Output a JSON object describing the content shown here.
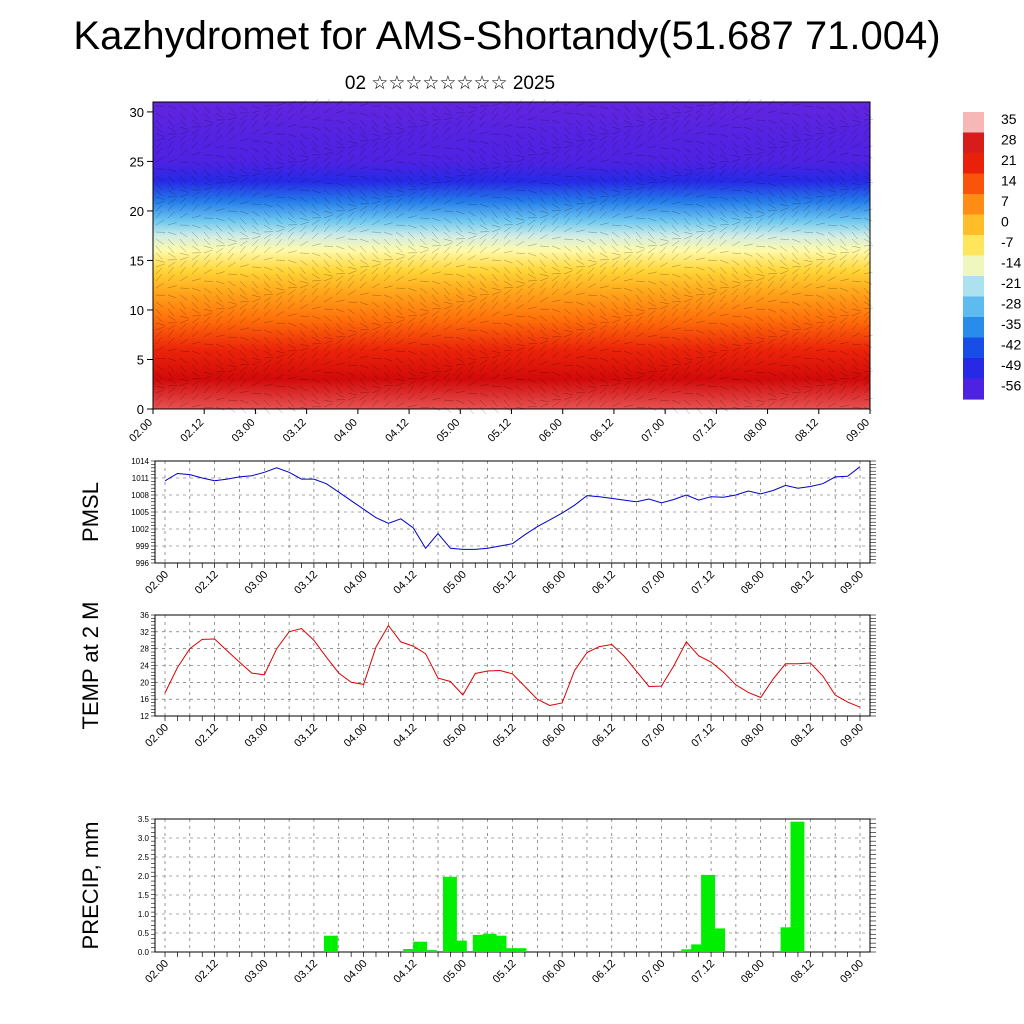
{
  "title": "Kazhydromet for AMS-Shortandy(51.687 71.004)",
  "subtitle": "02 ☆☆☆☆☆☆☆☆ 2025",
  "chart_data": [
    {
      "type": "heatmap",
      "name": "vertical-temperature-cross-section",
      "x_ticks": [
        "02.00",
        "02.12",
        "03.00",
        "03.12",
        "04.00",
        "04.12",
        "05.00",
        "05.12",
        "06.00",
        "06.12",
        "07.00",
        "07.12",
        "08.00",
        "08.12",
        "09.00"
      ],
      "y_ticks": [
        0,
        5,
        10,
        15,
        20,
        25,
        30
      ],
      "ylim": [
        0,
        31
      ],
      "colorbar_labels": [
        "35",
        "28",
        "21",
        "14",
        "7",
        "0",
        "-7",
        "-14",
        "-21",
        "-28",
        "-35",
        "-42",
        "-49",
        "-56"
      ],
      "colorbar_range": [
        -60,
        38
      ],
      "level_temperatures": [
        {
          "level": 0,
          "t": 33
        },
        {
          "level": 3,
          "t": 29
        },
        {
          "level": 6,
          "t": 22
        },
        {
          "level": 9,
          "t": 13
        },
        {
          "level": 12,
          "t": 5
        },
        {
          "level": 14,
          "t": -2
        },
        {
          "level": 16,
          "t": -10
        },
        {
          "level": 17.5,
          "t": -16
        },
        {
          "level": 19,
          "t": -24
        },
        {
          "level": 21,
          "t": -35
        },
        {
          "level": 23,
          "t": -47
        },
        {
          "level": 25,
          "t": -54
        },
        {
          "level": 28,
          "t": -55
        },
        {
          "level": 31,
          "t": -57
        }
      ]
    },
    {
      "type": "line",
      "ylabel": "PMSL",
      "ylim": [
        996,
        1014
      ],
      "y_ticks": [
        996,
        999,
        1002,
        1005,
        1008,
        1011,
        1014
      ],
      "x_ticks": [
        "02.00",
        "02.12",
        "03.00",
        "03.12",
        "04.00",
        "04.12",
        "05.00",
        "05.12",
        "06.00",
        "06.12",
        "07.00",
        "07.12",
        "08.00",
        "08.12",
        "09.00"
      ],
      "color": "#0000cc",
      "series": [
        {
          "x": [
            0,
            3,
            6,
            9,
            12,
            15,
            18,
            21,
            24,
            27,
            30,
            33,
            36,
            39,
            42,
            45,
            48,
            51,
            54,
            57,
            60,
            63,
            66,
            69,
            72,
            75,
            78,
            81,
            84,
            87,
            90,
            93,
            96,
            99,
            102,
            105,
            108,
            111,
            114,
            117,
            120,
            123,
            126,
            129,
            132,
            135,
            138,
            141,
            144,
            147,
            150,
            153,
            156,
            159,
            162,
            165,
            168
          ],
          "values": [
            1010.5,
            1011.8,
            1011.6,
            1011.0,
            1010.5,
            1010.8,
            1011.2,
            1011.4,
            1012.0,
            1012.8,
            1012.0,
            1010.8,
            1010.8,
            1010.0,
            1008.5,
            1007.0,
            1005.5,
            1004.0,
            1003.0,
            1003.8,
            1002.2,
            998.6,
            1001.2,
            998.6,
            998.4,
            998.4,
            998.6,
            999.0,
            999.4,
            1001.0,
            1002.4,
            1003.6,
            1004.8,
            1006.2,
            1007.9,
            1007.7,
            1007.4,
            1007.1,
            1006.8,
            1007.3,
            1006.6,
            1007.2,
            1008.0,
            1007.1,
            1007.7,
            1007.6,
            1008.0,
            1008.7,
            1008.2,
            1008.8,
            1009.7,
            1009.2,
            1009.5,
            1010.0,
            1011.2,
            1011.3,
            1013.0
          ]
        }
      ]
    },
    {
      "type": "line",
      "ylabel": "TEMP at 2 M",
      "ylim": [
        12,
        36
      ],
      "y_ticks": [
        12,
        16,
        20,
        24,
        28,
        32,
        36
      ],
      "x_ticks": [
        "02.00",
        "02.12",
        "03.00",
        "03.12",
        "04.00",
        "04.12",
        "05.00",
        "05.12",
        "06.00",
        "06.12",
        "07.00",
        "07.12",
        "08.00",
        "08.12",
        "09.00"
      ],
      "color": "#dd0000",
      "series": [
        {
          "x": [
            0,
            3,
            6,
            9,
            12,
            15,
            18,
            21,
            24,
            27,
            30,
            33,
            36,
            39,
            42,
            45,
            48,
            51,
            54,
            57,
            60,
            63,
            66,
            69,
            72,
            75,
            78,
            81,
            84,
            87,
            90,
            93,
            96,
            99,
            102,
            105,
            108,
            111,
            114,
            117,
            120,
            123,
            126,
            129,
            132,
            135,
            138,
            141,
            144,
            147,
            150,
            153,
            156,
            159,
            162,
            165,
            168
          ],
          "values": [
            17.5,
            23.5,
            28,
            30.2,
            30.3,
            27.5,
            24.8,
            22.2,
            21.8,
            28,
            32,
            32.8,
            30,
            26,
            22.2,
            20,
            19.5,
            28.4,
            33.5,
            29.6,
            28.6,
            26.8,
            21,
            20.2,
            17,
            22.1,
            22.7,
            22.8,
            22,
            19,
            16,
            14.5,
            15.1,
            22.8,
            27.1,
            28.5,
            29,
            26.2,
            22.6,
            19,
            19.1,
            23.9,
            29.6,
            26.3,
            24.8,
            22.4,
            19.4,
            17.6,
            16.4,
            20.8,
            24.4,
            24.4,
            24.6,
            21.5,
            17,
            15.3,
            14.1
          ]
        }
      ]
    },
    {
      "type": "bar",
      "ylabel": "PRECIP, mm",
      "ylim": [
        0,
        3.5
      ],
      "y_ticks": [
        0.0,
        0.5,
        1.0,
        1.5,
        2.0,
        2.5,
        3.0,
        3.5
      ],
      "y_tick_labels": [
        "0.0",
        "0.5",
        "1.0",
        "1.5",
        "2.0",
        "2.5",
        "3.0",
        "3.5"
      ],
      "x_ticks": [
        "02.00",
        "02.12",
        "03.00",
        "03.12",
        "04.00",
        "04.12",
        "05.00",
        "05.12",
        "06.00",
        "06.12",
        "07.00",
        "07.12",
        "08.00",
        "08.12",
        "09.00"
      ],
      "color": "#00ee00",
      "values": [
        0,
        0,
        0,
        0,
        0,
        0,
        0,
        0,
        0,
        0,
        0,
        0,
        0,
        0,
        0,
        0,
        0.43,
        0,
        0,
        0,
        0,
        0,
        0,
        0,
        0.08,
        0.27,
        0.05,
        0,
        1.98,
        0.3,
        0,
        0.45,
        0.48,
        0.43,
        0.1,
        0.1,
        0,
        0,
        0,
        0,
        0,
        0,
        0,
        0,
        0,
        0,
        0,
        0,
        0,
        0,
        0,
        0,
        0.07,
        0.2,
        2.03,
        0.62,
        0,
        0,
        0,
        0,
        0,
        0,
        0.65,
        3.43,
        0,
        0,
        0,
        0,
        0,
        0
      ]
    }
  ]
}
